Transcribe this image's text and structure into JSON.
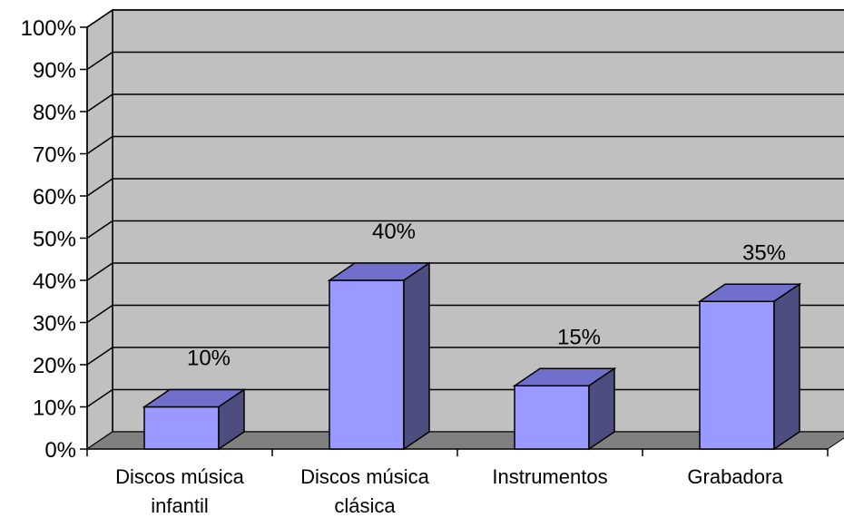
{
  "chart_data": {
    "type": "bar",
    "title": "",
    "xlabel": "",
    "ylabel": "",
    "categories": [
      [
        "Discos música",
        "infantil"
      ],
      [
        "Discos música",
        "clásica"
      ],
      [
        "Instrumentos"
      ],
      [
        "Grabadora"
      ]
    ],
    "values": [
      10,
      40,
      15,
      35
    ],
    "data_labels": [
      "10%",
      "40%",
      "15%",
      "35%"
    ],
    "ylim": [
      0,
      100
    ],
    "yticks": [
      0,
      10,
      20,
      30,
      40,
      50,
      60,
      70,
      80,
      90,
      100
    ],
    "ytick_labels": [
      "0%",
      "10%",
      "20%",
      "30%",
      "40%",
      "50%",
      "60%",
      "70%",
      "80%",
      "90%",
      "100%"
    ],
    "grid": true,
    "legend": "none",
    "style": "3d",
    "colors": {
      "bar_front": "#9999FF",
      "bar_top": "#7070CC",
      "bar_side": "#4D4D80",
      "wall": "#C0C0C0",
      "floor": "#808080",
      "grid": "#000000"
    }
  }
}
